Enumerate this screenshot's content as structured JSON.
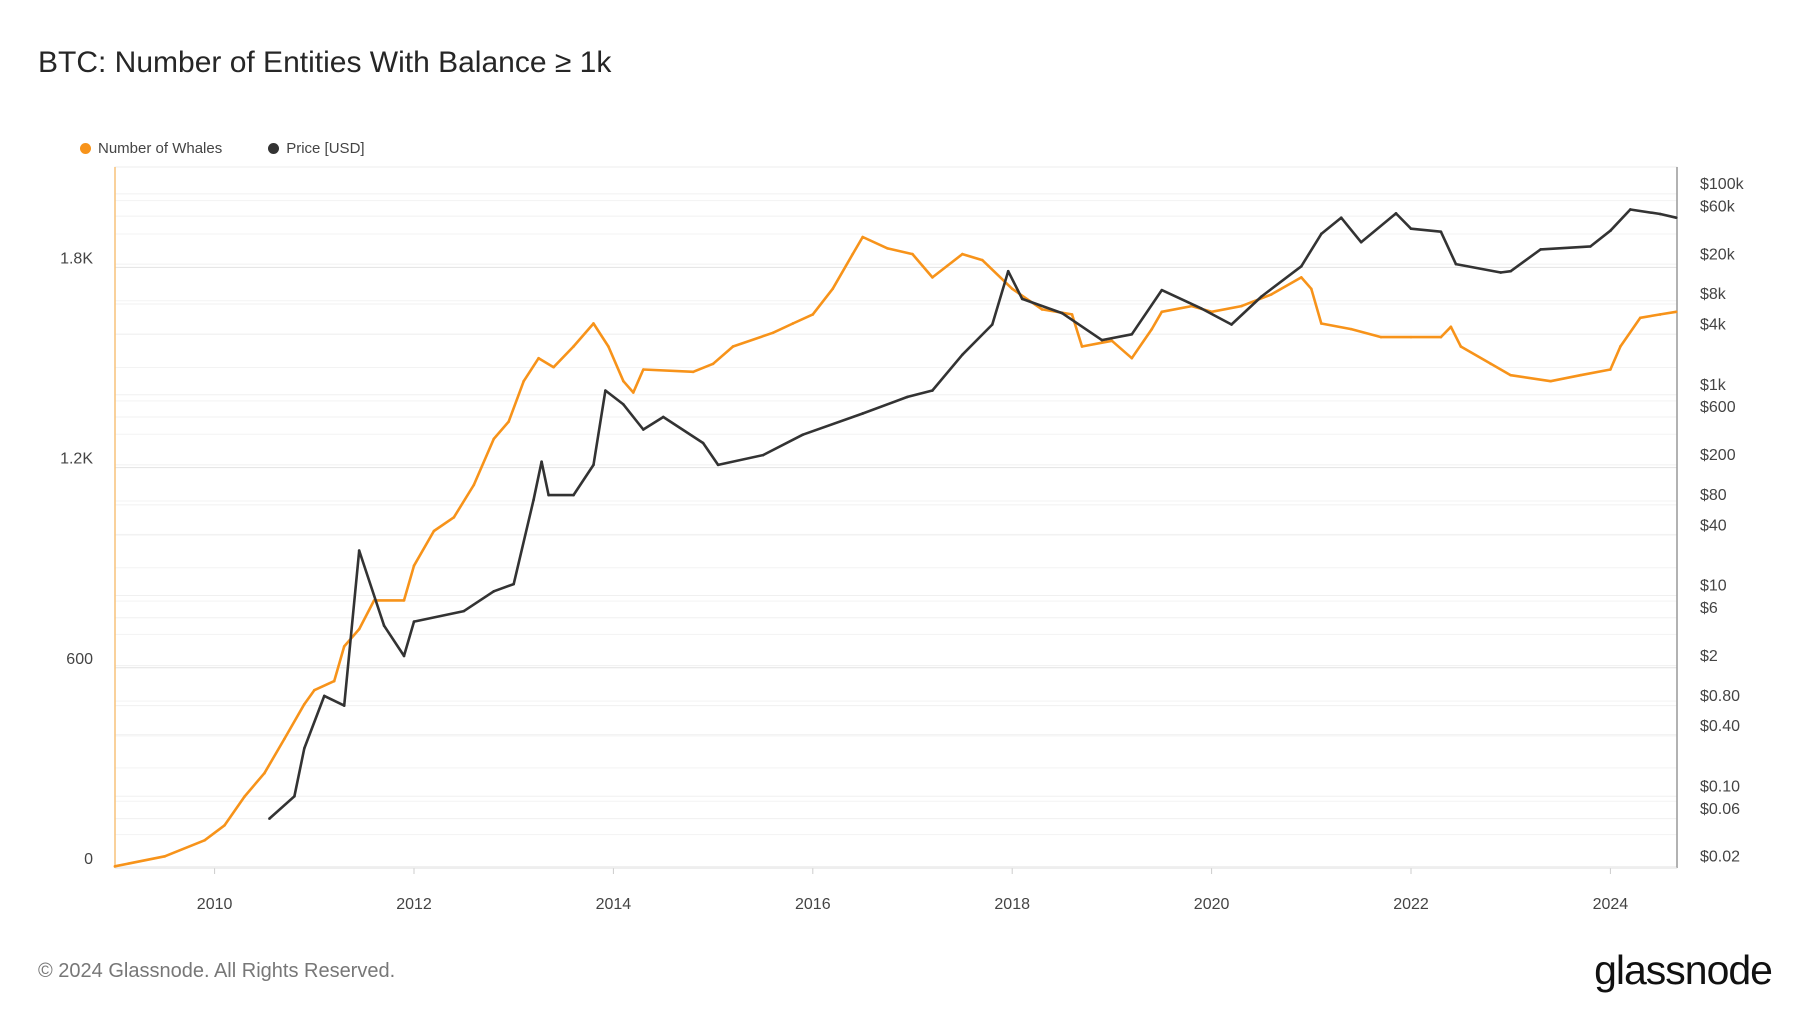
{
  "title": "BTC: Number of Entities With Balance ≥ 1k",
  "footer": "© 2024 Glassnode. All Rights Reserved.",
  "logo": "glassnode",
  "legend": [
    {
      "label": "Number of Whales",
      "color": "#f7931a"
    },
    {
      "label": "Price [USD]",
      "color": "#333333"
    }
  ],
  "chart_data": {
    "type": "line",
    "title": "BTC: Number of Entities With Balance ≥ 1k",
    "x_range": [
      2009.0,
      2024.67
    ],
    "x_ticks": [
      "2010",
      "2012",
      "2014",
      "2016",
      "2018",
      "2020",
      "2022",
      "2024"
    ],
    "y_left": {
      "range": [
        0,
        2100
      ],
      "ticks": [
        {
          "v": 0,
          "label": "0"
        },
        {
          "v": 600,
          "label": "600"
        },
        {
          "v": 1200,
          "label": "1.2K"
        },
        {
          "v": 1800,
          "label": "1.8K"
        }
      ]
    },
    "y_right": {
      "scale": "log",
      "range": [
        0.02,
        180000
      ],
      "ticks": [
        {
          "v": 100000,
          "label": "$100k"
        },
        {
          "v": 60000,
          "label": "$60k"
        },
        {
          "v": 20000,
          "label": "$20k"
        },
        {
          "v": 8000,
          "label": "$8k"
        },
        {
          "v": 4000,
          "label": "$4k"
        },
        {
          "v": 1000,
          "label": "$1k"
        },
        {
          "v": 600,
          "label": "$600"
        },
        {
          "v": 200,
          "label": "$200"
        },
        {
          "v": 80,
          "label": "$80"
        },
        {
          "v": 40,
          "label": "$40"
        },
        {
          "v": 10,
          "label": "$10"
        },
        {
          "v": 6,
          "label": "$6"
        },
        {
          "v": 2,
          "label": "$2"
        },
        {
          "v": 0.8,
          "label": "$0.80"
        },
        {
          "v": 0.4,
          "label": "$0.40"
        },
        {
          "v": 0.1,
          "label": "$0.10"
        },
        {
          "v": 0.06,
          "label": "$0.06"
        },
        {
          "v": 0.02,
          "label": "$0.02"
        }
      ]
    },
    "grid": true,
    "legend_position": "top-left",
    "series": [
      {
        "name": "Number of Whales",
        "axis": "left",
        "color": "#f7931a",
        "x": [
          2009.0,
          2009.5,
          2009.9,
          2010.1,
          2010.3,
          2010.5,
          2010.7,
          2010.9,
          2011.0,
          2011.2,
          2011.3,
          2011.45,
          2011.6,
          2011.9,
          2012.0,
          2012.2,
          2012.4,
          2012.6,
          2012.8,
          2012.95,
          2013.1,
          2013.25,
          2013.4,
          2013.6,
          2013.8,
          2013.95,
          2014.1,
          2014.2,
          2014.3,
          2014.8,
          2015.0,
          2015.2,
          2015.6,
          2015.8,
          2016.0,
          2016.2,
          2016.4,
          2016.5,
          2016.75,
          2017.0,
          2017.2,
          2017.5,
          2017.7,
          2018.0,
          2018.3,
          2018.6,
          2018.7,
          2019.0,
          2019.2,
          2019.4,
          2019.5,
          2019.8,
          2020.0,
          2020.3,
          2020.6,
          2020.9,
          2021.0,
          2021.1,
          2021.4,
          2021.7,
          2022.0,
          2022.3,
          2022.4,
          2022.5,
          2022.8,
          2023.0,
          2023.4,
          2023.7,
          2024.0,
          2024.1,
          2024.3,
          2024.5,
          2024.66
        ],
        "y": [
          5,
          35,
          83,
          128,
          214,
          284,
          387,
          491,
          533,
          560,
          664,
          716,
          802,
          802,
          906,
          1010,
          1051,
          1148,
          1286,
          1338,
          1459,
          1528,
          1501,
          1563,
          1632,
          1563,
          1459,
          1425,
          1494,
          1487,
          1511,
          1563,
          1604,
          1632,
          1659,
          1736,
          1840,
          1891,
          1857,
          1840,
          1770,
          1840,
          1822,
          1736,
          1674,
          1659,
          1563,
          1580,
          1528,
          1615,
          1667,
          1684,
          1667,
          1684,
          1719,
          1770,
          1736,
          1632,
          1615,
          1591,
          1591,
          1591,
          1622,
          1563,
          1511,
          1477,
          1459,
          1477,
          1494,
          1563,
          1649,
          1659,
          1667
        ]
      },
      {
        "name": "Price [USD]",
        "axis": "right",
        "color": "#333333",
        "x": [
          2010.55,
          2010.8,
          2010.9,
          2011.1,
          2011.3,
          2011.45,
          2011.7,
          2011.9,
          2012.0,
          2012.5,
          2012.8,
          2013.0,
          2013.2,
          2013.28,
          2013.35,
          2013.6,
          2013.8,
          2013.92,
          2014.1,
          2014.3,
          2014.5,
          2014.9,
          2015.05,
          2015.5,
          2015.9,
          2016.5,
          2016.95,
          2017.2,
          2017.5,
          2017.8,
          2017.96,
          2018.1,
          2018.5,
          2018.9,
          2019.2,
          2019.5,
          2019.9,
          2020.2,
          2020.5,
          2020.9,
          2021.1,
          2021.3,
          2021.5,
          2021.85,
          2022.0,
          2022.3,
          2022.45,
          2022.9,
          2023.0,
          2023.3,
          2023.8,
          2024.0,
          2024.2,
          2024.5,
          2024.66
        ],
        "y": [
          0.06,
          0.1,
          0.3,
          1,
          0.8,
          28,
          5,
          2.5,
          5.5,
          7,
          11,
          13,
          90,
          215,
          100,
          100,
          200,
          1100,
          800,
          450,
          600,
          330,
          200,
          250,
          400,
          650,
          950,
          1100,
          2500,
          5000,
          17000,
          9000,
          6500,
          3500,
          4000,
          11000,
          7200,
          5000,
          9500,
          19000,
          40000,
          58000,
          33000,
          64000,
          45000,
          42000,
          20000,
          16500,
          17000,
          28000,
          30000,
          43000,
          70000,
          63000,
          58000
        ]
      }
    ]
  }
}
